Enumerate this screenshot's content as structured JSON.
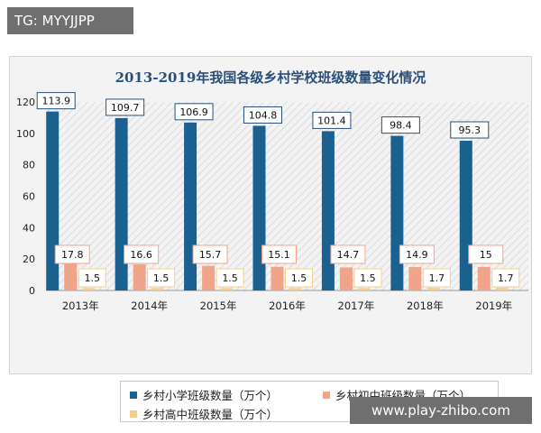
{
  "overlay": {
    "top_left": "TG: MYYJJPP",
    "bottom_right": "www.play-zhibo.com"
  },
  "colors": {
    "primary": "#1a6091",
    "middle": "#f0a58a",
    "high": "#f7cf8a",
    "title": "#2a4f79",
    "label_border": "#2a4f79"
  },
  "chart_data": {
    "type": "bar",
    "title": "2013-2019年我国各级乡村学校班级数量变化情况",
    "xlabel": "",
    "ylabel": "",
    "ylim": [
      0,
      120
    ],
    "yticks": [
      0,
      20,
      40,
      60,
      80,
      100,
      120
    ],
    "categories": [
      "2013年",
      "2014年",
      "2015年",
      "2016年",
      "2017年",
      "2018年",
      "2019年"
    ],
    "series": [
      {
        "name": "乡村小学班级数量（万个）",
        "values": [
          113.9,
          109.7,
          106.9,
          104.8,
          101.4,
          98.4,
          95.3
        ],
        "labels": [
          "113.9",
          "109.7",
          "106.9",
          "104.8",
          "101.4",
          "98.4",
          "95.3"
        ]
      },
      {
        "name": "乡村初中班级数量（万个）",
        "values": [
          17.8,
          16.6,
          15.7,
          15.1,
          14.7,
          14.9,
          15
        ],
        "labels": [
          "17.8",
          "16.6",
          "15.7",
          "15.1",
          "14.7",
          "14.9",
          "15"
        ]
      },
      {
        "name": "乡村高中班级数量（万个）",
        "values": [
          1.5,
          1.5,
          1.5,
          1.5,
          1.5,
          1.7,
          1.7
        ],
        "labels": [
          "1.5",
          "1.5",
          "1.5",
          "1.5",
          "1.5",
          "1.7",
          "1.7"
        ]
      }
    ],
    "grid": false,
    "legend_position": "bottom"
  }
}
